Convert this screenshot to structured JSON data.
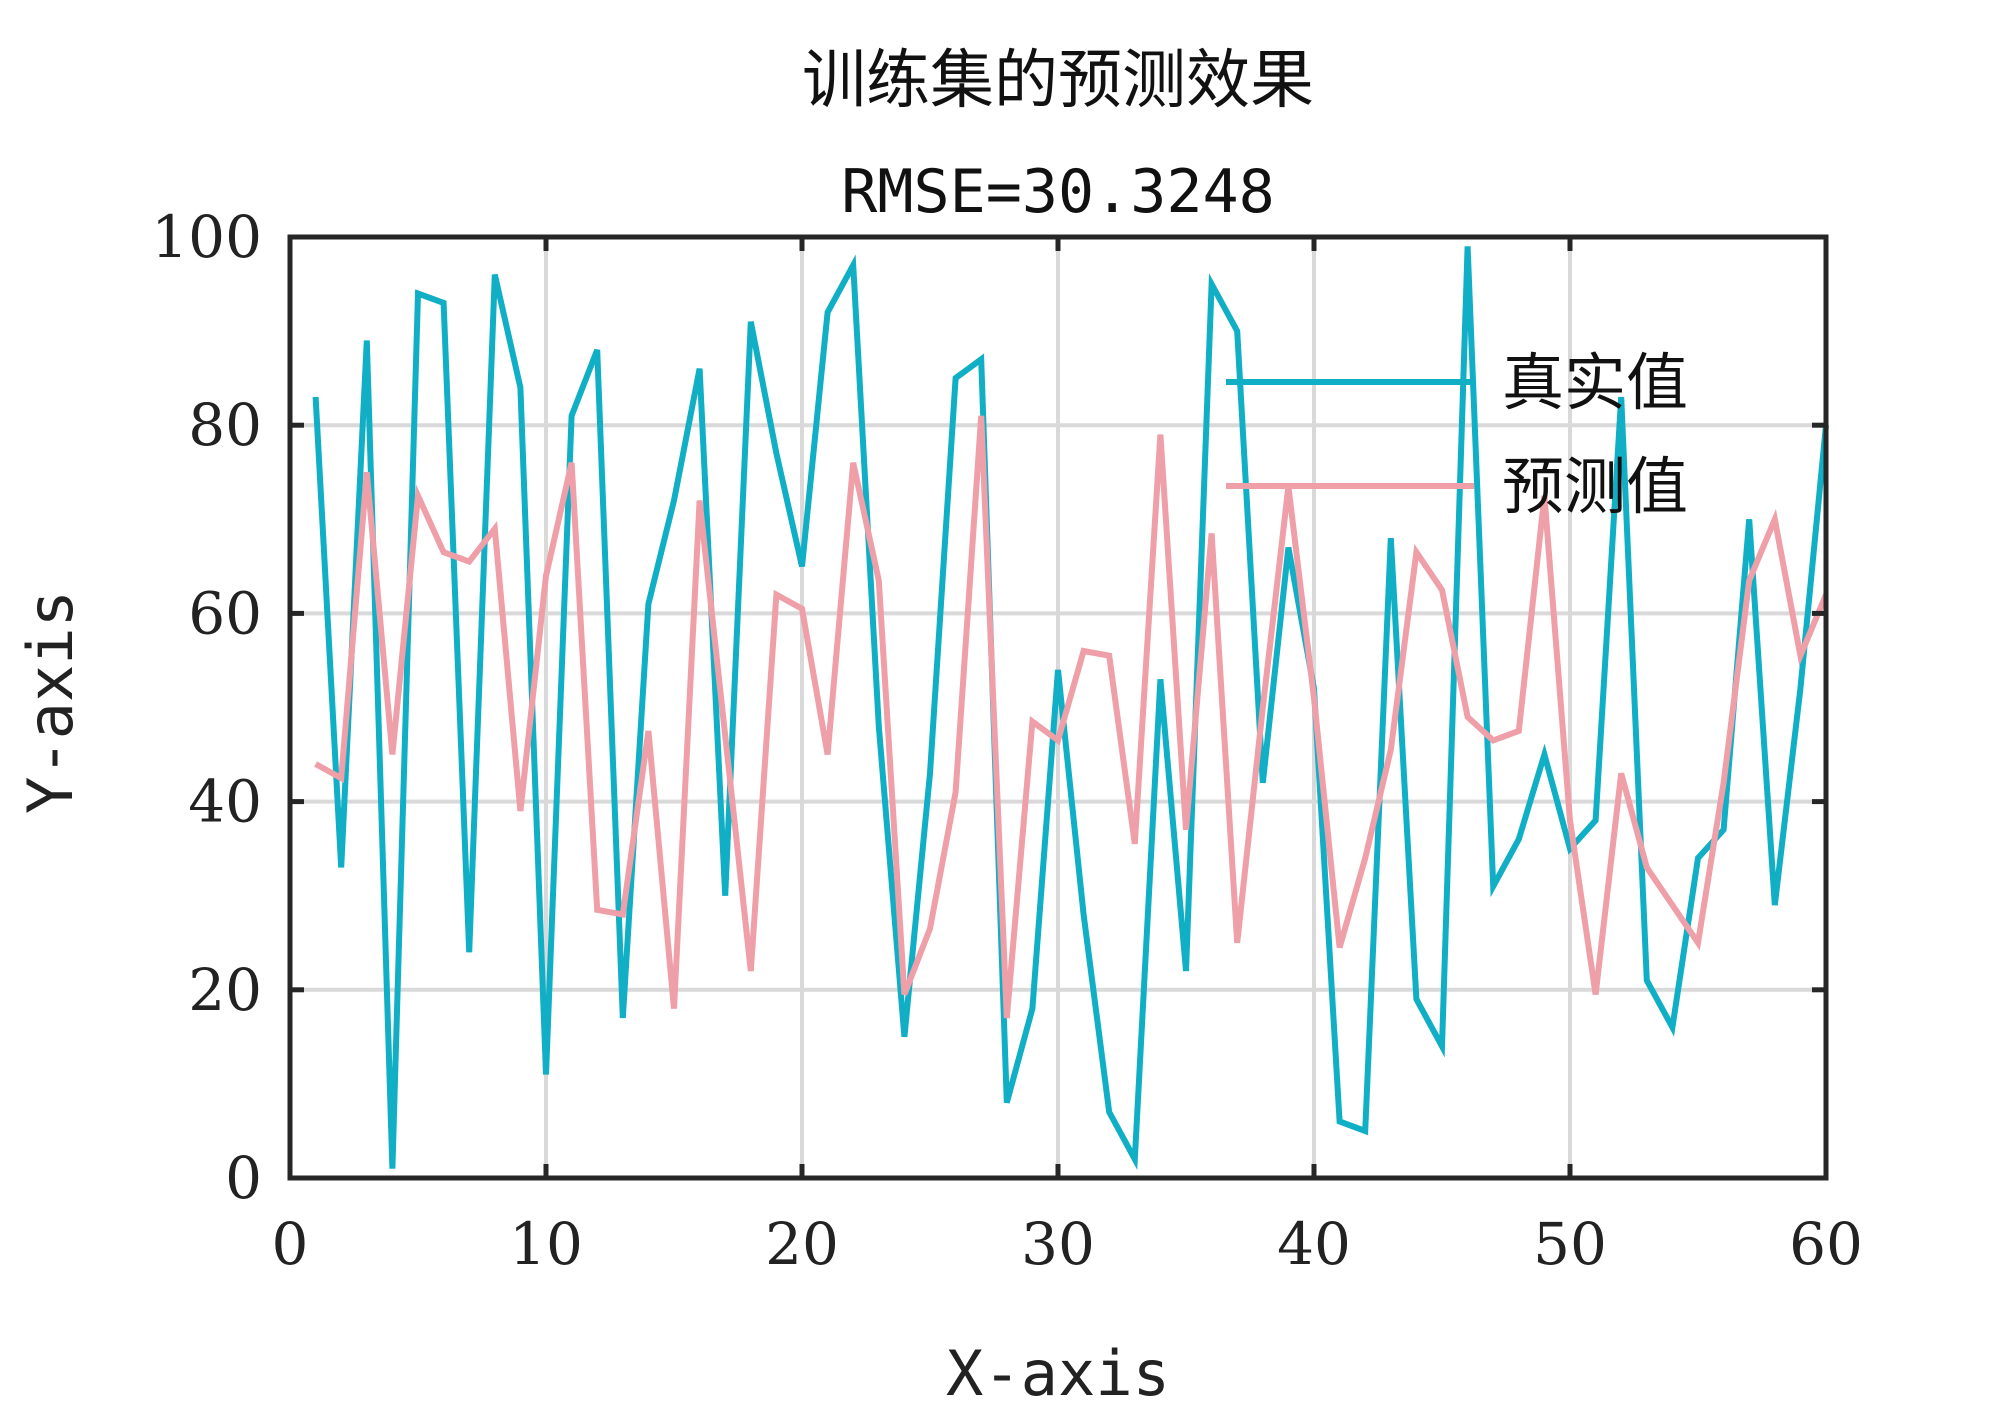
{
  "chart_data": {
    "type": "line",
    "title": "训练集的预测效果",
    "subtitle": "RMSE=30.3248",
    "xlabel": "X-axis",
    "ylabel": "Y-axis",
    "xlim": [
      0,
      60
    ],
    "ylim": [
      0,
      100
    ],
    "xticks": [
      0,
      10,
      20,
      30,
      40,
      50,
      60
    ],
    "yticks": [
      0,
      20,
      40,
      60,
      80,
      100
    ],
    "grid": true,
    "legend_position": "top-right",
    "x": [
      1,
      2,
      3,
      4,
      5,
      6,
      7,
      8,
      9,
      10,
      11,
      12,
      13,
      14,
      15,
      16,
      17,
      18,
      19,
      20,
      21,
      22,
      23,
      24,
      25,
      26,
      27,
      28,
      29,
      30,
      31,
      32,
      33,
      34,
      35,
      36,
      37,
      38,
      39,
      40,
      41,
      42,
      43,
      44,
      45,
      46,
      47,
      48,
      49,
      50,
      51,
      52,
      53,
      54,
      55,
      56,
      57,
      58,
      59,
      60
    ],
    "series": [
      {
        "name": "真实值",
        "color": "#10afc6",
        "values": [
          83,
          33,
          89,
          1,
          94,
          93,
          24,
          96,
          84,
          11,
          81,
          88,
          17,
          61,
          72,
          86,
          30,
          91,
          77,
          65,
          92,
          97,
          48,
          15,
          43,
          85,
          87,
          8,
          18,
          54,
          28,
          7,
          2,
          53,
          22,
          95,
          90,
          42,
          67,
          52,
          6,
          5,
          68,
          19,
          14,
          99,
          31,
          36,
          45,
          35,
          38,
          83,
          21,
          16,
          34,
          37,
          70,
          29,
          52,
          80
        ]
      },
      {
        "name": "预测值",
        "color": "#ee9fa7",
        "values": [
          44,
          42.5,
          75,
          45,
          72.5,
          66.5,
          65.5,
          69,
          39,
          64,
          76,
          28.5,
          28,
          47.5,
          18,
          72,
          47,
          22,
          62,
          60.5,
          45,
          76,
          63.5,
          19.5,
          26.5,
          41,
          81,
          17,
          48.5,
          46.5,
          56,
          55.5,
          35.5,
          79,
          37,
          68.5,
          25,
          50,
          73.5,
          51,
          24.5,
          34,
          45.5,
          66.5,
          62.5,
          49,
          46.5,
          47.5,
          72.5,
          38,
          19.5,
          43,
          33,
          29,
          25,
          42,
          63.5,
          70,
          55.5,
          62
        ]
      }
    ]
  }
}
